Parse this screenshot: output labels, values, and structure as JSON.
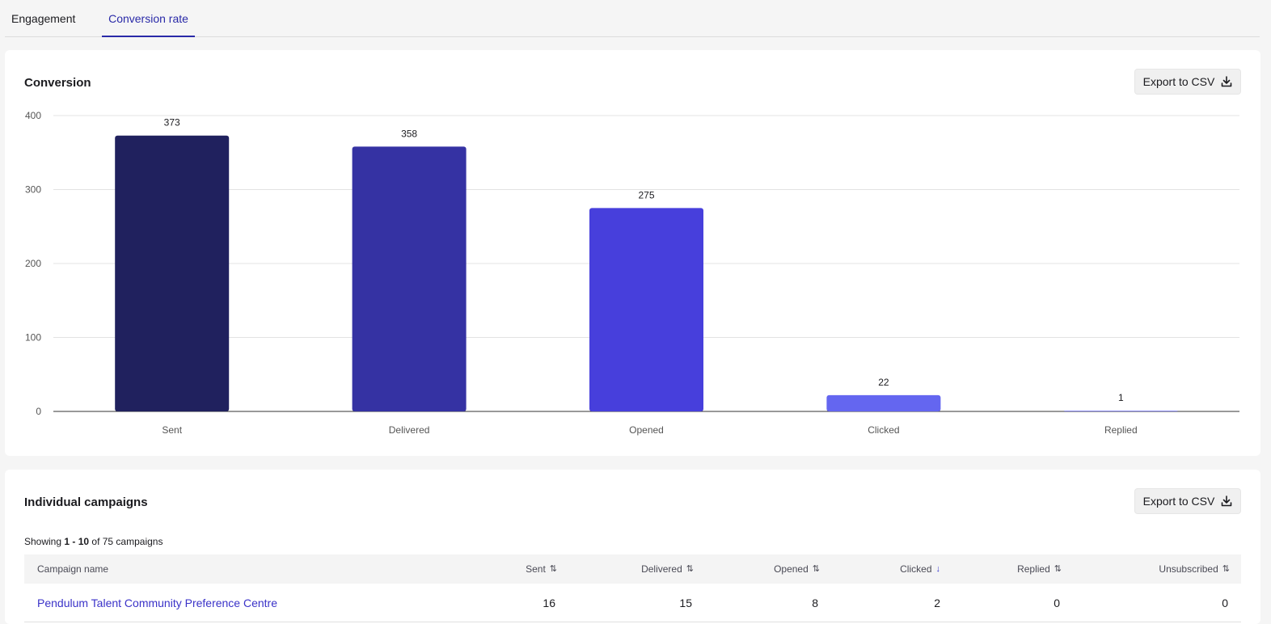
{
  "tabs": [
    {
      "label": "Engagement",
      "active": false
    },
    {
      "label": "Conversion rate",
      "active": true
    }
  ],
  "conversion": {
    "title": "Conversion",
    "export_label": "Export to CSV"
  },
  "chart_data": {
    "type": "bar",
    "categories": [
      "Sent",
      "Delivered",
      "Opened",
      "Clicked",
      "Replied"
    ],
    "values": [
      373,
      358,
      275,
      22,
      1
    ],
    "data_labels": [
      "373",
      "358",
      "275",
      "22",
      "1"
    ],
    "colors": [
      "#20215e",
      "#3532a3",
      "#473fdc",
      "#6466f0",
      "#8a8af5"
    ],
    "y_ticks": [
      0,
      100,
      200,
      300,
      400
    ],
    "ylim": [
      0,
      400
    ],
    "grid": true,
    "title": "",
    "xlabel": "",
    "ylabel": ""
  },
  "campaigns": {
    "title": "Individual campaigns",
    "export_label": "Export to CSV",
    "showing": {
      "prefix": "Showing",
      "range": "1 - 10",
      "suffix": "of 75 campaigns"
    },
    "columns": [
      {
        "label": "Campaign name",
        "sort": ""
      },
      {
        "label": "Sent",
        "sort": "⇅"
      },
      {
        "label": "Delivered",
        "sort": "⇅"
      },
      {
        "label": "Opened",
        "sort": "⇅"
      },
      {
        "label": "Clicked",
        "sort": "↓"
      },
      {
        "label": "Replied",
        "sort": "⇅"
      },
      {
        "label": "Unsubscribed",
        "sort": "⇅"
      }
    ],
    "rows": [
      {
        "name": "Pendulum Talent Community Preference Centre",
        "sent": "16",
        "delivered": "15",
        "opened": "8",
        "clicked": "2",
        "replied": "0",
        "unsubscribed": "0"
      }
    ]
  },
  "icons": {
    "export": "download-icon",
    "sort": "sort-icon",
    "sort_active": "arrow-down-icon"
  },
  "accent_color": "#2a2aa8"
}
